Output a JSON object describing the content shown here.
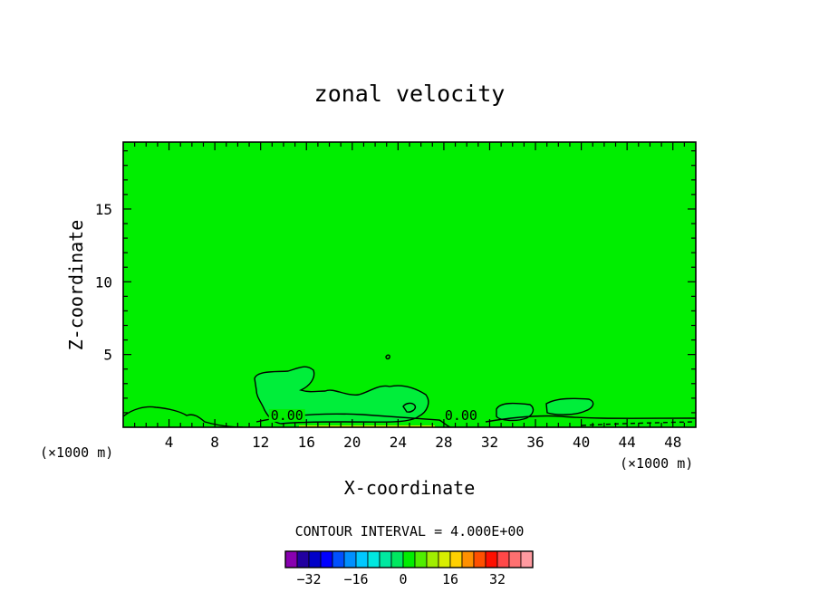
{
  "chart_data": {
    "type": "contour",
    "title": "zonal velocity",
    "xlabel": "X-coordinate",
    "ylabel": "Z-coordinate",
    "x_unit_left": "(×1000 m)",
    "x_unit_right": "(×1000 m)",
    "xlim": [
      0,
      50
    ],
    "ylim": [
      0,
      19.6
    ],
    "xticks": [
      4,
      8,
      12,
      16,
      20,
      24,
      28,
      32,
      36,
      40,
      44,
      48
    ],
    "yticks": [
      5,
      10,
      15
    ],
    "contour_labels": [
      {
        "text": "0.00",
        "x": 14.3,
        "z": 0.5
      },
      {
        "text": "0.00",
        "x": 29.5,
        "z": 0.5
      }
    ],
    "background_level_color": "#00ee00",
    "regions": [
      {
        "level": 4,
        "color": "#00ee3a",
        "description": "weak positive velocity patches at 11-27 km, z<4.4"
      },
      {
        "level": 4,
        "color": "#00ee3a",
        "description": "small patches near x=36-41 km"
      }
    ],
    "contour_interval_text": "CONTOUR INTERVAL = 4.000E+00",
    "colorbar": {
      "colors": [
        "#8800b0",
        "#2200a0",
        "#0000c8",
        "#0000ff",
        "#0050ff",
        "#0090ff",
        "#00c8ff",
        "#00e8e0",
        "#00e8a0",
        "#00e860",
        "#00ee00",
        "#50ee00",
        "#a0ee00",
        "#d8ee00",
        "#ffd000",
        "#ff9000",
        "#ff5000",
        "#ff1000",
        "#ff4848",
        "#ff7070",
        "#ff9aa0"
      ],
      "tick_labels": [
        "-32",
        "-16",
        "0",
        "16",
        "32"
      ],
      "tick_values": [
        -32,
        -16,
        0,
        16,
        32
      ]
    }
  }
}
